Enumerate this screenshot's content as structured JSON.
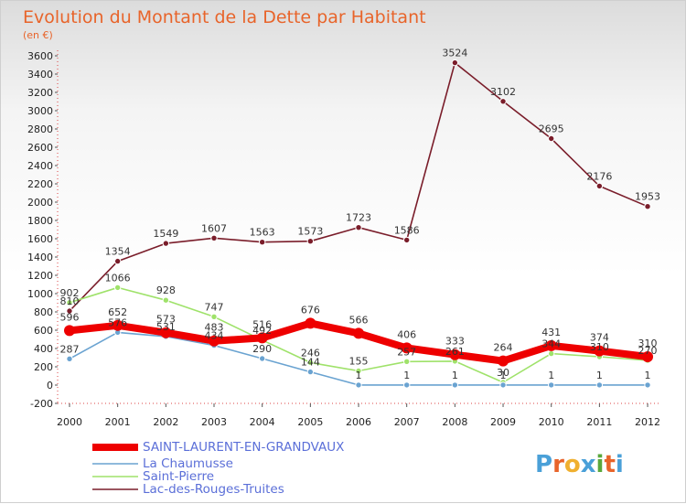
{
  "chart_data": {
    "type": "line",
    "title": "Evolution du Montant de la Dette par Habitant",
    "subtitle": "(en €)",
    "x": [
      "2000",
      "2001",
      "2002",
      "2003",
      "2004",
      "2005",
      "2006",
      "2007",
      "2008",
      "2009",
      "2010",
      "2011",
      "2012"
    ],
    "ylim": [
      -200,
      3600
    ],
    "yticks": [
      -200,
      0,
      200,
      400,
      600,
      800,
      1000,
      1200,
      1400,
      1600,
      1800,
      2000,
      2200,
      2400,
      2600,
      2800,
      3000,
      3200,
      3400,
      3600
    ],
    "grid": false,
    "legend_position": "bottom-left",
    "series": [
      {
        "name": "SAINT-LAURENT-EN-GRANDVAUX",
        "color": "#ee0000",
        "values": [
          596,
          652,
          573,
          483,
          516,
          676,
          566,
          406,
          333,
          264,
          431,
          374,
          310
        ]
      },
      {
        "name": "La Chaumusse",
        "color": "#6aa3d1",
        "values": [
          287,
          576,
          531,
          434,
          290,
          144,
          1,
          1,
          1,
          1,
          1,
          1,
          1
        ]
      },
      {
        "name": "Saint-Pierre",
        "color": "#9fe26a",
        "values": [
          902,
          1066,
          928,
          747,
          492,
          246,
          155,
          257,
          261,
          30,
          344,
          310,
          270
        ]
      },
      {
        "name": "Lac-des-Rouges-Truites",
        "color": "#7a1d2a",
        "values": [
          810,
          1354,
          1549,
          1607,
          1563,
          1573,
          1723,
          1586,
          3524,
          3102,
          2695,
          2176,
          1953
        ]
      }
    ]
  },
  "logo": {
    "text": "Proxiti",
    "letter_colors": [
      "#4aa0d8",
      "#e8642a",
      "#f0b030",
      "#4aa0d8",
      "#5aa83c",
      "#e8642a",
      "#4aa0d8"
    ]
  }
}
